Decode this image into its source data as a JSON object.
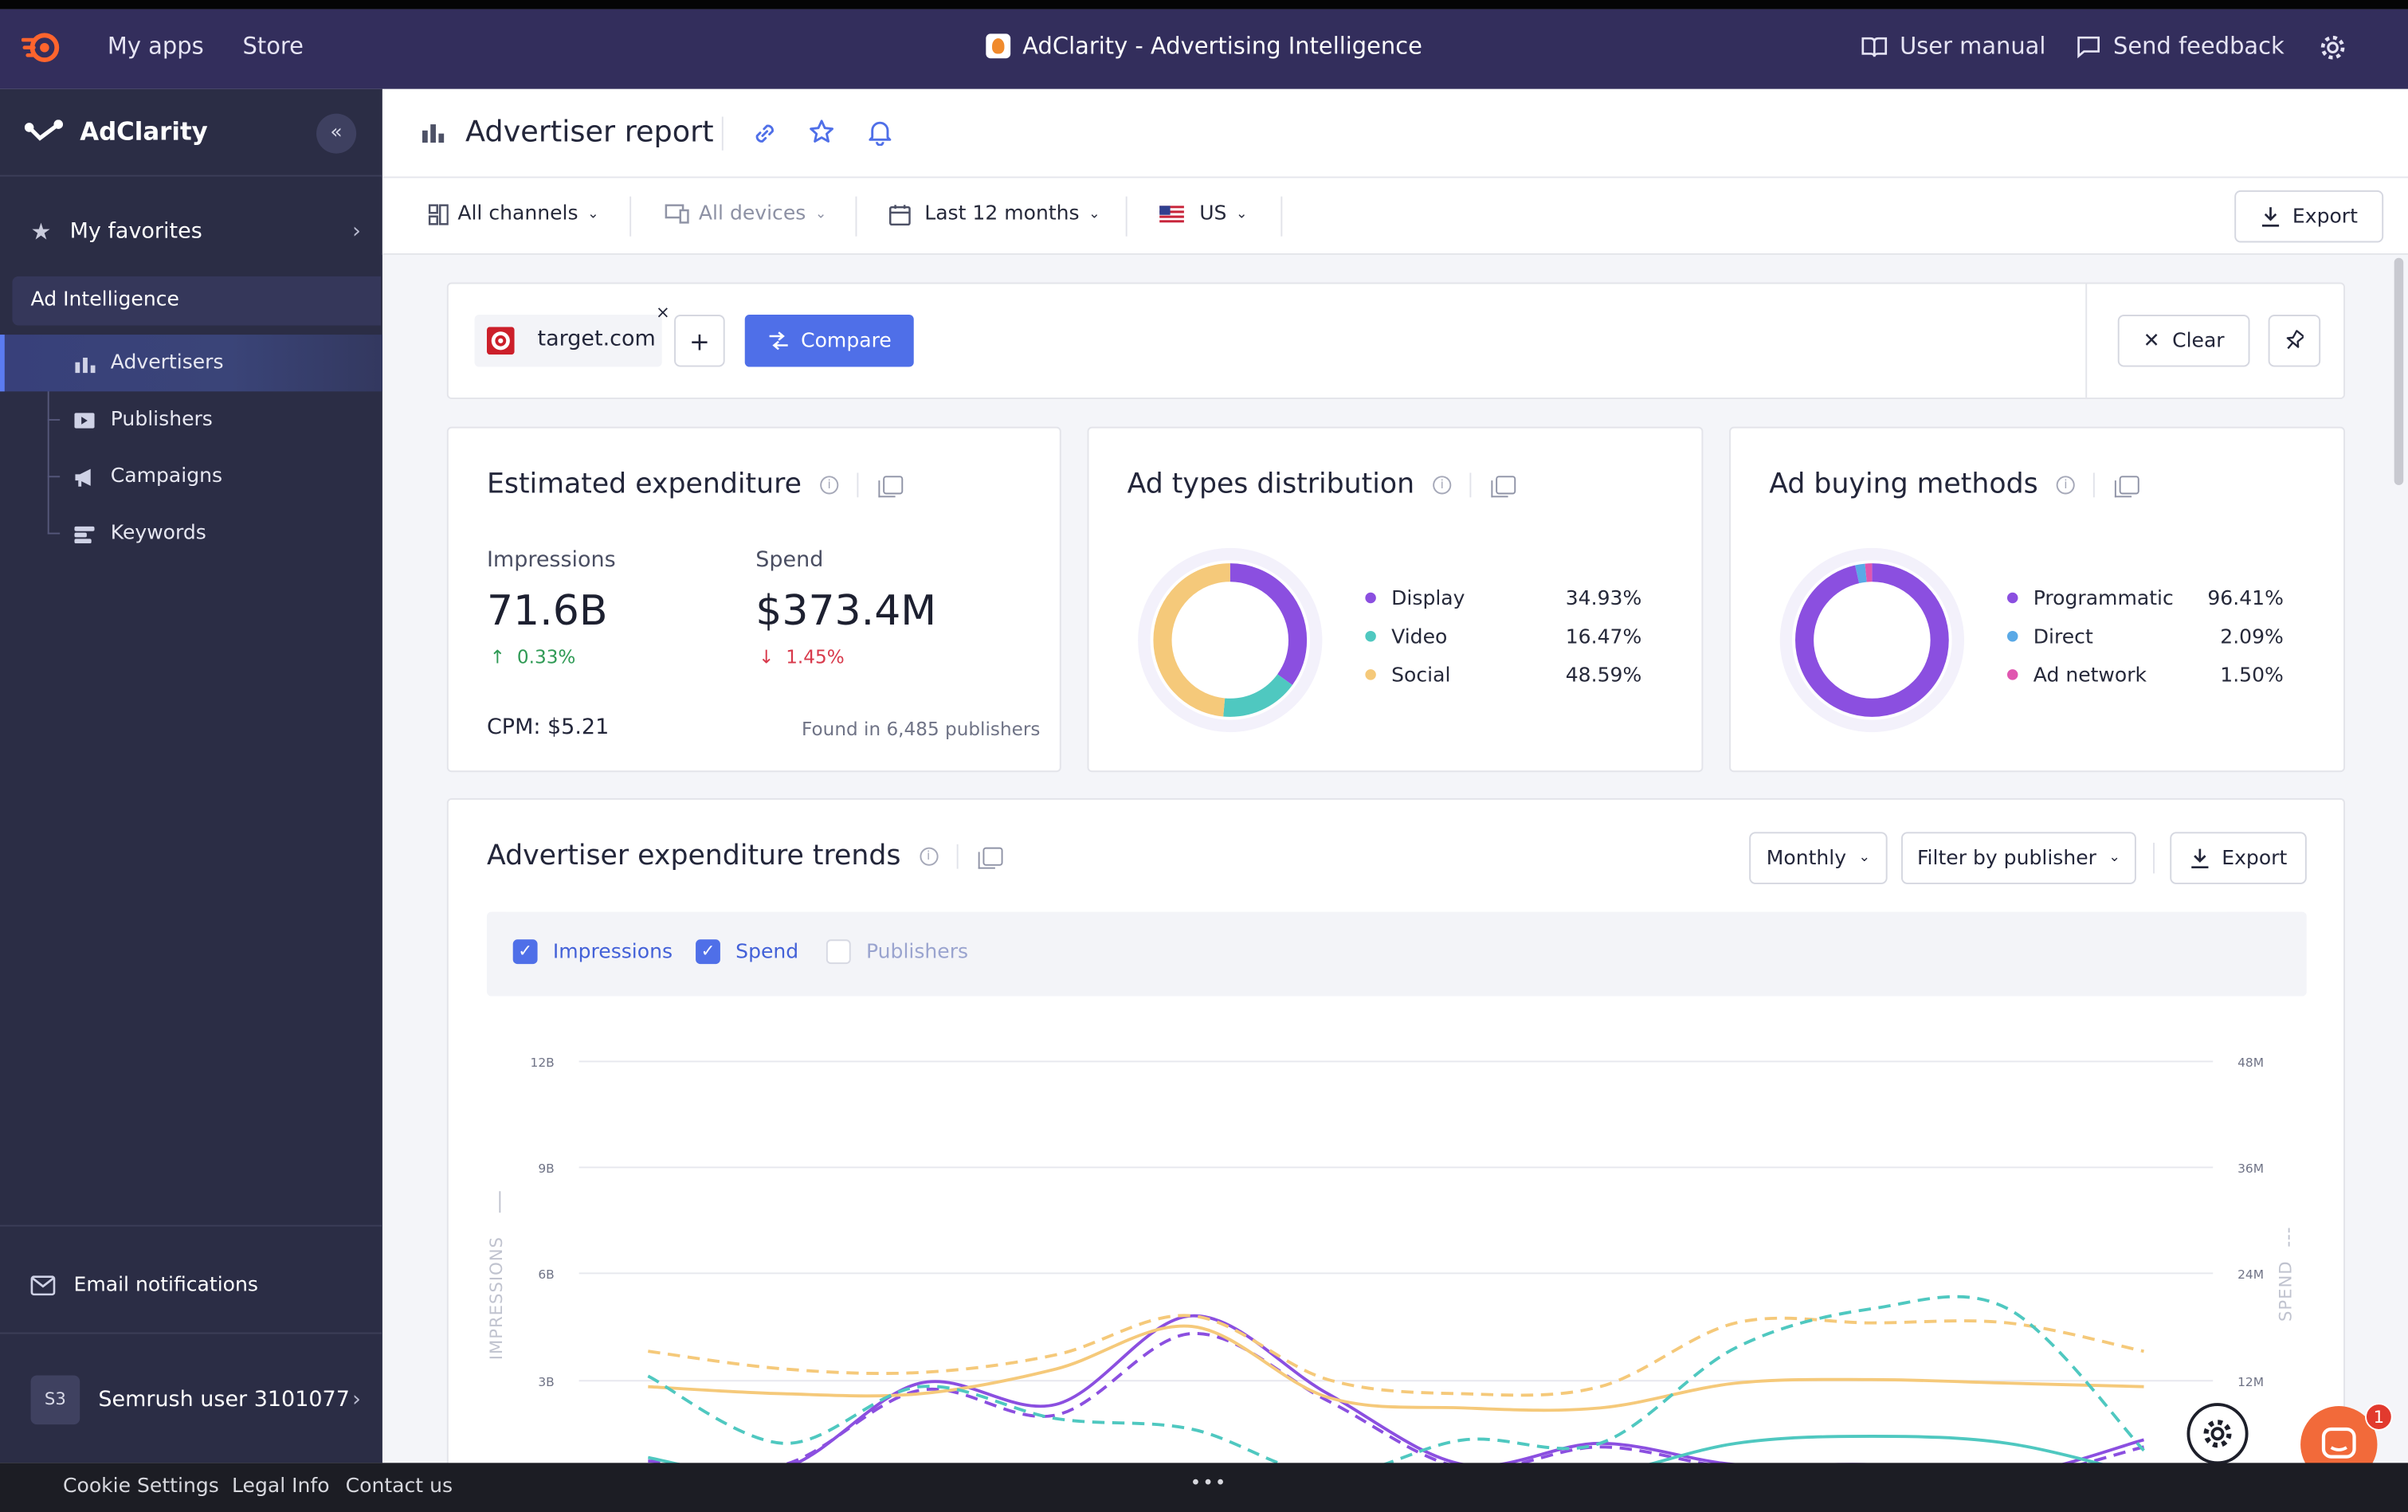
{
  "topbar": {
    "my_apps": "My apps",
    "store": "Store",
    "app_title": "AdClarity - Advertising Intelligence",
    "user_manual": "User manual",
    "send_feedback": "Send feedback"
  },
  "sidebar": {
    "brand": "AdClarity",
    "favorites": "My favorites",
    "section": "Ad Intelligence",
    "items": [
      {
        "label": "Advertisers",
        "icon": "advertisers-icon",
        "active": true
      },
      {
        "label": "Publishers",
        "icon": "publishers-icon",
        "active": false
      },
      {
        "label": "Campaigns",
        "icon": "megaphone-icon",
        "active": false
      },
      {
        "label": "Keywords",
        "icon": "keywords-icon",
        "active": false
      }
    ],
    "email_notifications": "Email notifications",
    "user_initials": "S3",
    "user_name": "Semrush user 3101077"
  },
  "header": {
    "title": "Advertiser report"
  },
  "filters": {
    "channels": "All channels",
    "devices": "All devices",
    "period": "Last 12 months",
    "country": "US",
    "export": "Export"
  },
  "compare_bar": {
    "domain": "target.com",
    "remove": "×",
    "add": "+",
    "compare": "Compare",
    "clear": "Clear"
  },
  "expenditure": {
    "title": "Estimated expenditure",
    "impressions_label": "Impressions",
    "impressions_value": "71.6B",
    "impressions_change": "0.33%",
    "spend_label": "Spend",
    "spend_value": "$373.4M",
    "spend_change": "1.45%",
    "cpm": "CPM: $5.21",
    "found_in": "Found in 6,485 publishers"
  },
  "ad_types": {
    "title": "Ad types distribution",
    "items": [
      {
        "label": "Display",
        "pct": "34.93%",
        "value": 34.93,
        "color": "#8b4fe0"
      },
      {
        "label": "Video",
        "pct": "16.47%",
        "value": 16.47,
        "color": "#4fc8c0"
      },
      {
        "label": "Social",
        "pct": "48.59%",
        "value": 48.59,
        "color": "#f5c97a"
      }
    ]
  },
  "buying_methods": {
    "title": "Ad buying methods",
    "items": [
      {
        "label": "Programmatic",
        "pct": "96.41%",
        "value": 96.41,
        "color": "#8b4fe0"
      },
      {
        "label": "Direct",
        "pct": "2.09%",
        "value": 2.09,
        "color": "#5aa9e6"
      },
      {
        "label": "Ad network",
        "pct": "1.50%",
        "value": 1.5,
        "color": "#e056b0"
      }
    ]
  },
  "trends": {
    "title": "Advertiser expenditure trends",
    "granularity": "Monthly",
    "filter": "Filter by publisher",
    "export": "Export",
    "checks": [
      {
        "label": "Impressions",
        "checked": true
      },
      {
        "label": "Spend",
        "checked": true
      },
      {
        "label": "Publishers",
        "checked": false
      }
    ],
    "y_left_label": "IMPRESSIONS",
    "y_right_label": "SPEND"
  },
  "chart_data": {
    "type": "line",
    "y_left_ticks": [
      "12B",
      "9B",
      "6B",
      "3B"
    ],
    "y_right_ticks": [
      "48M",
      "36M",
      "24M",
      "12M"
    ],
    "ylim_left": [
      0,
      12
    ],
    "ylim_right": [
      0,
      48
    ],
    "x": [
      0,
      1,
      2,
      3,
      4,
      5,
      6,
      7,
      8,
      9,
      10,
      11
    ],
    "series": [
      {
        "color": "#8b4fe0",
        "dashed": false,
        "values": [
          0.6,
          0.5,
          2.9,
          2.3,
          4.8,
          2.6,
          0.6,
          1.2,
          0.6,
          0.6,
          0.3,
          1.3
        ]
      },
      {
        "color": "#8b4fe0",
        "dashed": true,
        "values": [
          0.7,
          0.6,
          2.7,
          2.0,
          4.3,
          2.4,
          0.5,
          1.1,
          0.5,
          0.5,
          0.2,
          1.1
        ]
      },
      {
        "color": "#f5c97a",
        "dashed": false,
        "values": [
          2.8,
          2.6,
          2.6,
          3.3,
          4.5,
          2.5,
          2.2,
          2.2,
          2.9,
          3.0,
          2.9,
          2.8
        ]
      },
      {
        "color": "#f5c97a",
        "dashed": true,
        "values": [
          3.8,
          3.3,
          3.2,
          3.7,
          4.8,
          3.0,
          2.6,
          2.8,
          4.6,
          4.6,
          4.6,
          3.8
        ]
      },
      {
        "color": "#4fc8c0",
        "dashed": false,
        "values": [
          0.8,
          0.1,
          0.5,
          0.3,
          0.1,
          0.1,
          0.1,
          0.3,
          1.2,
          1.4,
          1.2,
          0.3
        ]
      },
      {
        "color": "#4fc8c0",
        "dashed": true,
        "values": [
          3.1,
          1.2,
          2.8,
          1.9,
          1.6,
          0.3,
          1.3,
          1.2,
          3.9,
          5.0,
          5.0,
          1.0
        ]
      }
    ]
  },
  "footer": {
    "cookie": "Cookie Settings",
    "legal": "Legal Info",
    "contact": "Contact us",
    "more": "•••"
  },
  "widgets": {
    "chat_badge": "1"
  }
}
